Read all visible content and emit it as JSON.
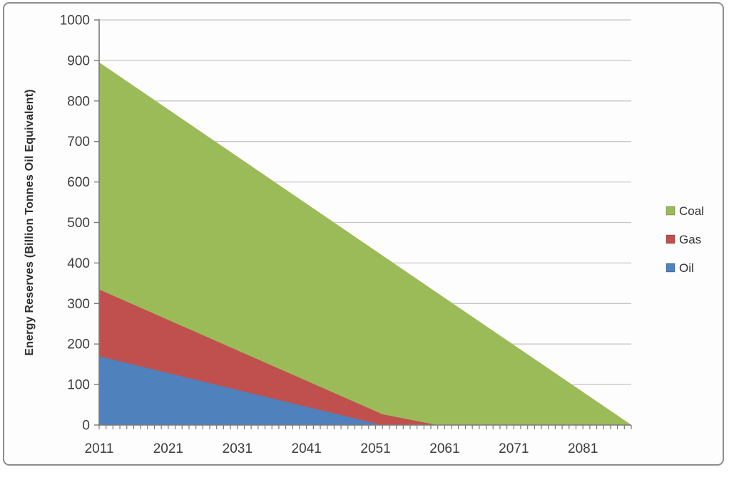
{
  "figure": {
    "background": "#fdfdfd",
    "frame_border_color": "#8d8d8d"
  },
  "chart_data": {
    "type": "area",
    "stacked": true,
    "title": "",
    "xlabel": "",
    "ylabel": "Energy Reserves (Billion Tonnes Oil Equivalent)",
    "xlim": [
      2011,
      2088
    ],
    "ylim": [
      0,
      1000
    ],
    "x": [
      2011,
      2052,
      2060,
      2088
    ],
    "series": [
      {
        "name": "Oil",
        "color": "#4f81bd",
        "values": [
          170,
          0,
          0,
          0
        ]
      },
      {
        "name": "Gas",
        "color": "#c0504d",
        "values": [
          165,
          27,
          0,
          0
        ]
      },
      {
        "name": "Coal",
        "color": "#9bbb59",
        "values": [
          560,
          391,
          325,
          0
        ]
      }
    ],
    "stack_order_bottom_to_top": [
      "Oil",
      "Gas",
      "Coal"
    ],
    "x_tick_labels": [
      2011,
      2021,
      2031,
      2041,
      2051,
      2061,
      2071,
      2081
    ],
    "x_minor_tick_step": 1,
    "y_ticks": [
      0,
      100,
      200,
      300,
      400,
      500,
      600,
      700,
      800,
      900,
      1000
    ],
    "grid": {
      "horizontal": true,
      "vertical": false,
      "color": "#c6c6c6"
    },
    "axis_color": "#7a7a7a",
    "text_color": "#3c3c3c",
    "legend": {
      "position": "right",
      "entries": [
        "Coal",
        "Gas",
        "Oil"
      ]
    }
  }
}
